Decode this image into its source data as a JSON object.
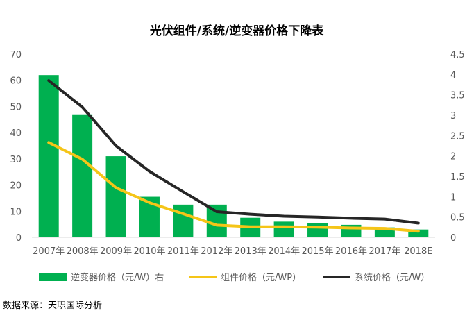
{
  "chart_data": {
    "type": "bar",
    "title": "光伏组件/系统/逆变器价格下降表",
    "categories": [
      "2007年",
      "2008年",
      "2009年",
      "2010年",
      "2011年",
      "2012年",
      "2013年",
      "2014年",
      "2015年",
      "2016年",
      "2017年",
      "2018E"
    ],
    "left_axis": {
      "min": 0,
      "max": 70,
      "ticks": [
        "0",
        "10",
        "20",
        "30",
        "40",
        "50",
        "60",
        "70"
      ],
      "tick_values": [
        0,
        10,
        20,
        30,
        40,
        50,
        60,
        70
      ]
    },
    "right_axis": {
      "min": 0,
      "max": 4.5,
      "ticks": [
        "0",
        "0.5",
        "1",
        "1.5",
        "2",
        "2.5",
        "3",
        "3.5",
        "4",
        "4.5"
      ],
      "tick_values": [
        0,
        0.5,
        1,
        1.5,
        2,
        2.5,
        3,
        3.5,
        4,
        4.5
      ]
    },
    "series": [
      {
        "name": "逆变器价格（元/W）右",
        "kind": "bar",
        "axis": "left",
        "color": "#00b050",
        "values": [
          62,
          47,
          31,
          15.5,
          12.5,
          12.5,
          7.5,
          6,
          5.5,
          4.8,
          3.8,
          3
        ]
      },
      {
        "name": "组件价格（元/WP）",
        "kind": "line",
        "axis": "right",
        "color": "#f5c518",
        "values": [
          2.33,
          1.92,
          1.22,
          0.85,
          0.58,
          0.3,
          0.26,
          0.26,
          0.25,
          0.23,
          0.22,
          0.15
        ]
      },
      {
        "name": "系统价格（元/W）",
        "kind": "line",
        "axis": "right",
        "color": "#262626",
        "values": [
          3.85,
          3.2,
          2.25,
          1.62,
          1.12,
          0.63,
          0.57,
          0.52,
          0.5,
          0.47,
          0.45,
          0.35
        ]
      }
    ],
    "legend_position": "bottom"
  },
  "source": "数据来源：天职国际分析"
}
